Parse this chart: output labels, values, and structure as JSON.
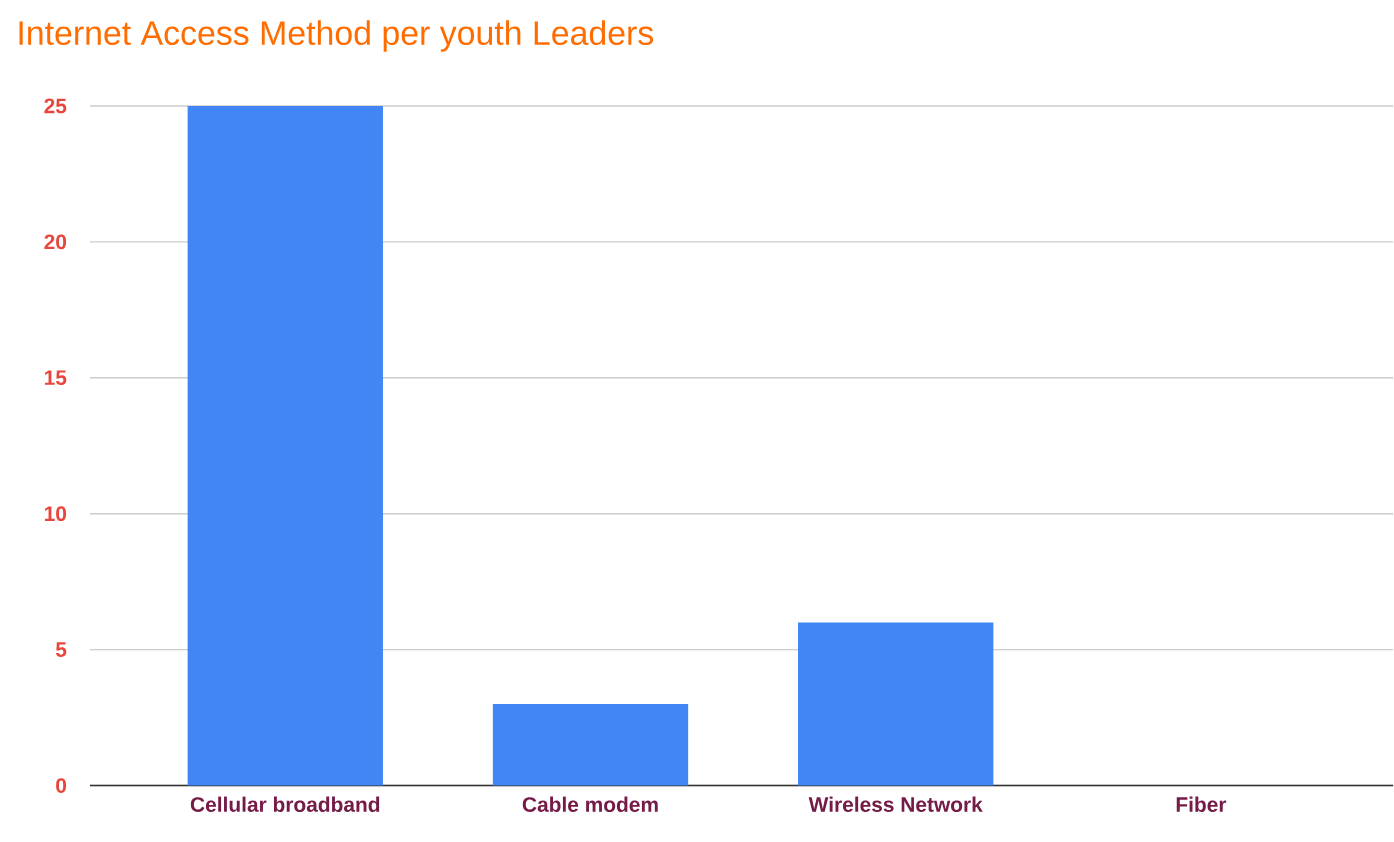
{
  "chart_data": {
    "type": "bar",
    "title": "Internet Access Method per youth Leaders",
    "categories": [
      "Cellular broadband",
      "Cable modem",
      "Wireless Network",
      "Fiber"
    ],
    "values": [
      25,
      3,
      6,
      0
    ],
    "color": "#4285f4",
    "ylim": [
      0,
      25
    ],
    "yticks": [
      0,
      5,
      10,
      15,
      20,
      25
    ],
    "grid": "y"
  }
}
